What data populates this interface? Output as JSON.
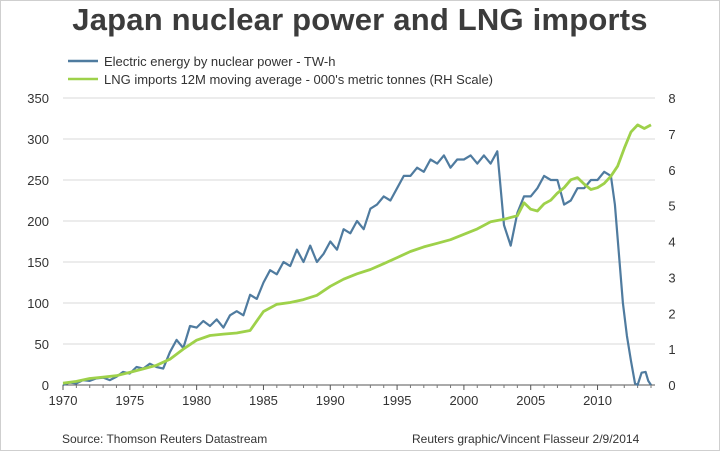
{
  "chart_data": {
    "type": "line",
    "title": "Japan nuclear power and LNG imports",
    "x_ticks": [
      1970,
      1975,
      1980,
      1985,
      1990,
      1995,
      2000,
      2005,
      2010
    ],
    "xlim": [
      1970,
      2014.3
    ],
    "left_ticks": [
      0,
      50,
      100,
      150,
      200,
      250,
      300,
      350
    ],
    "ylim_left": [
      0,
      350
    ],
    "right_ticks": [
      0,
      1,
      2,
      3,
      4,
      5,
      6,
      7,
      8
    ],
    "ylim_right": [
      0,
      8
    ],
    "grid": true,
    "legend_placement": "top-left",
    "series": [
      {
        "name": "Electric energy by nuclear power - TW-h",
        "axis": "left",
        "color": "#4f7b9f",
        "points": [
          [
            1970,
            0
          ],
          [
            1970.5,
            3
          ],
          [
            1971,
            2
          ],
          [
            1971.5,
            6
          ],
          [
            1972,
            5
          ],
          [
            1972.5,
            8
          ],
          [
            1973,
            9
          ],
          [
            1973.5,
            6
          ],
          [
            1974,
            10
          ],
          [
            1974.5,
            16
          ],
          [
            1975,
            14
          ],
          [
            1975.5,
            22
          ],
          [
            1976,
            20
          ],
          [
            1976.5,
            26
          ],
          [
            1977,
            22
          ],
          [
            1977.5,
            20
          ],
          [
            1978,
            40
          ],
          [
            1978.5,
            55
          ],
          [
            1979,
            45
          ],
          [
            1979.5,
            72
          ],
          [
            1980,
            70
          ],
          [
            1980.5,
            78
          ],
          [
            1981,
            72
          ],
          [
            1981.5,
            80
          ],
          [
            1982,
            70
          ],
          [
            1982.5,
            85
          ],
          [
            1983,
            90
          ],
          [
            1983.5,
            85
          ],
          [
            1984,
            110
          ],
          [
            1984.5,
            105
          ],
          [
            1985,
            125
          ],
          [
            1985.5,
            140
          ],
          [
            1986,
            135
          ],
          [
            1986.5,
            150
          ],
          [
            1987,
            145
          ],
          [
            1987.5,
            165
          ],
          [
            1988,
            150
          ],
          [
            1988.5,
            170
          ],
          [
            1989,
            150
          ],
          [
            1989.5,
            160
          ],
          [
            1990,
            175
          ],
          [
            1990.5,
            165
          ],
          [
            1991,
            190
          ],
          [
            1991.5,
            185
          ],
          [
            1992,
            200
          ],
          [
            1992.5,
            190
          ],
          [
            1993,
            215
          ],
          [
            1993.5,
            220
          ],
          [
            1994,
            230
          ],
          [
            1994.5,
            225
          ],
          [
            1995,
            240
          ],
          [
            1995.5,
            255
          ],
          [
            1996,
            255
          ],
          [
            1996.5,
            265
          ],
          [
            1997,
            260
          ],
          [
            1997.5,
            275
          ],
          [
            1998,
            270
          ],
          [
            1998.5,
            280
          ],
          [
            1999,
            265
          ],
          [
            1999.5,
            275
          ],
          [
            2000,
            275
          ],
          [
            2000.5,
            280
          ],
          [
            2001,
            270
          ],
          [
            2001.5,
            280
          ],
          [
            2002,
            270
          ],
          [
            2002.5,
            285
          ],
          [
            2003,
            195
          ],
          [
            2003.5,
            170
          ],
          [
            2004,
            210
          ],
          [
            2004.5,
            230
          ],
          [
            2005,
            230
          ],
          [
            2005.5,
            240
          ],
          [
            2006,
            255
          ],
          [
            2006.5,
            250
          ],
          [
            2007,
            250
          ],
          [
            2007.5,
            220
          ],
          [
            2008,
            225
          ],
          [
            2008.5,
            240
          ],
          [
            2009,
            240
          ],
          [
            2009.5,
            250
          ],
          [
            2010,
            250
          ],
          [
            2010.5,
            260
          ],
          [
            2011,
            255
          ],
          [
            2011.3,
            220
          ],
          [
            2011.6,
            160
          ],
          [
            2011.9,
            100
          ],
          [
            2012.2,
            60
          ],
          [
            2012.5,
            30
          ],
          [
            2012.8,
            2
          ],
          [
            2013,
            0
          ],
          [
            2013.3,
            15
          ],
          [
            2013.6,
            16
          ],
          [
            2013.8,
            5
          ],
          [
            2014,
            0
          ]
        ]
      },
      {
        "name": "LNG imports 12M moving average - 000's metric tonnes (RH Scale)",
        "axis": "right",
        "color": "#9ed14a",
        "points": [
          [
            1970,
            0.05
          ],
          [
            1971,
            0.1
          ],
          [
            1972,
            0.18
          ],
          [
            1973,
            0.22
          ],
          [
            1974,
            0.26
          ],
          [
            1975,
            0.35
          ],
          [
            1976,
            0.45
          ],
          [
            1977,
            0.55
          ],
          [
            1978,
            0.72
          ],
          [
            1979,
            1.0
          ],
          [
            1980,
            1.25
          ],
          [
            1981,
            1.38
          ],
          [
            1982,
            1.42
          ],
          [
            1983,
            1.45
          ],
          [
            1984,
            1.52
          ],
          [
            1985,
            2.05
          ],
          [
            1986,
            2.25
          ],
          [
            1987,
            2.3
          ],
          [
            1988,
            2.38
          ],
          [
            1989,
            2.5
          ],
          [
            1990,
            2.75
          ],
          [
            1991,
            2.95
          ],
          [
            1992,
            3.1
          ],
          [
            1993,
            3.22
          ],
          [
            1994,
            3.38
          ],
          [
            1995,
            3.55
          ],
          [
            1996,
            3.72
          ],
          [
            1997,
            3.85
          ],
          [
            1998,
            3.95
          ],
          [
            1999,
            4.05
          ],
          [
            2000,
            4.2
          ],
          [
            2001,
            4.35
          ],
          [
            2002,
            4.55
          ],
          [
            2003,
            4.62
          ],
          [
            2004,
            4.72
          ],
          [
            2004.5,
            5.08
          ],
          [
            2005,
            4.9
          ],
          [
            2005.5,
            4.85
          ],
          [
            2006,
            5.05
          ],
          [
            2006.5,
            5.15
          ],
          [
            2007,
            5.35
          ],
          [
            2007.5,
            5.5
          ],
          [
            2008,
            5.72
          ],
          [
            2008.5,
            5.78
          ],
          [
            2009,
            5.6
          ],
          [
            2009.5,
            5.45
          ],
          [
            2010,
            5.5
          ],
          [
            2010.5,
            5.62
          ],
          [
            2011,
            5.82
          ],
          [
            2011.5,
            6.1
          ],
          [
            2012,
            6.6
          ],
          [
            2012.5,
            7.05
          ],
          [
            2013,
            7.25
          ],
          [
            2013.5,
            7.15
          ],
          [
            2014,
            7.25
          ]
        ]
      }
    ]
  },
  "footer": {
    "source": "Source: Thomson Reuters Datastream",
    "credit": "Reuters graphic/Vincent Flasseur 2/9/2014"
  }
}
